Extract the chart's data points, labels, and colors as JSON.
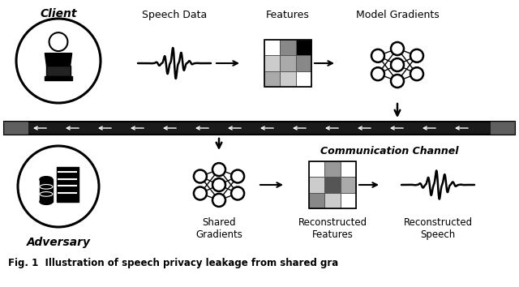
{
  "background_color": "#ffffff",
  "fig_width": 6.4,
  "fig_height": 3.54,
  "comm_channel_label": "Communication Channel",
  "client_label": "Client",
  "adversary_label": "Adversary",
  "top_labels": [
    "Speech Data",
    "Features",
    "Model Gradients"
  ],
  "bottom_labels": [
    "Shared\nGradients",
    "Reconstructed\nFeatures",
    "Reconstructed\nSpeech"
  ],
  "caption": "Fig. 1  Illustration of speech privacy leakage from shared gra",
  "feature_grid_top": [
    [
      "#ffffff",
      "#888888",
      "#000000"
    ],
    [
      "#cccccc",
      "#aaaaaa",
      "#888888"
    ],
    [
      "#aaaaaa",
      "#cccccc",
      "#ffffff"
    ]
  ],
  "feature_grid_bottom": [
    [
      "#ffffff",
      "#999999",
      "#ffffff"
    ],
    [
      "#cccccc",
      "#555555",
      "#aaaaaa"
    ],
    [
      "#888888",
      "#cccccc",
      "#ffffff"
    ]
  ]
}
